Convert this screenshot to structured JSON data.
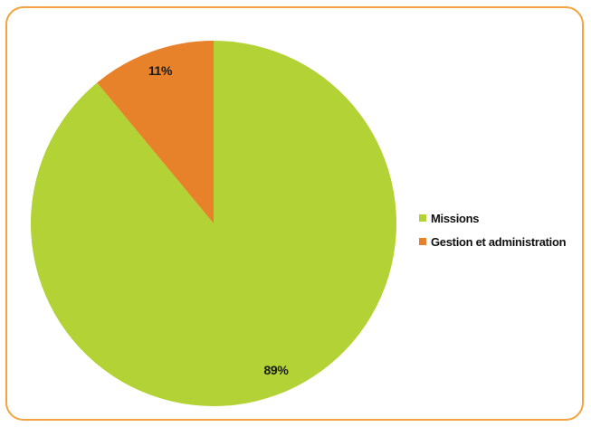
{
  "chart_data": {
    "type": "pie",
    "categories": [
      "Missions",
      "Gestion et administration"
    ],
    "values": [
      89,
      11
    ],
    "labels": [
      "89%",
      "11%"
    ],
    "colors": [
      "#b2d235",
      "#e8822a"
    ],
    "legend_position": "right"
  },
  "frame": {
    "border_color": "#f4a340"
  }
}
